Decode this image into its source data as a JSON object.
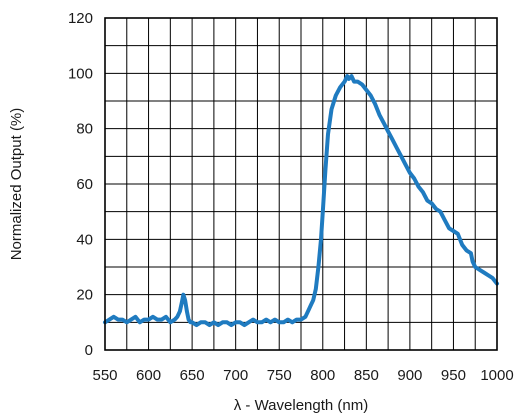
{
  "chart_data": {
    "type": "line",
    "title": "",
    "xlabel": "λ - Wavelength (nm)",
    "ylabel": "Normalized Output (%)",
    "xlim": [
      550,
      1000
    ],
    "ylim": [
      0,
      120
    ],
    "x_ticks": [
      550,
      600,
      650,
      700,
      750,
      800,
      850,
      900,
      950,
      1000
    ],
    "y_ticks": [
      0,
      20,
      40,
      60,
      80,
      100,
      120
    ],
    "x_tick_labels": [
      "550",
      "600",
      "650",
      "700",
      "750",
      "800",
      "850",
      "900",
      "950",
      "1000"
    ],
    "y_tick_labels": [
      "0",
      "20",
      "40",
      "60",
      "80",
      "100",
      "120"
    ],
    "x_minor_step": 25,
    "y_minor_step": 10,
    "grid": true,
    "series": [
      {
        "color": "#1f7bc0",
        "x": [
          550,
          555,
          560,
          565,
          570,
          575,
          580,
          585,
          590,
          595,
          600,
          605,
          610,
          615,
          620,
          625,
          630,
          633,
          636,
          638,
          640,
          642,
          644,
          646,
          648,
          650,
          655,
          660,
          665,
          670,
          675,
          680,
          685,
          690,
          695,
          700,
          705,
          710,
          715,
          720,
          725,
          730,
          735,
          740,
          745,
          750,
          755,
          760,
          765,
          770,
          775,
          780,
          783,
          786,
          789,
          792,
          795,
          798,
          800,
          803,
          806,
          810,
          815,
          820,
          825,
          828,
          830,
          833,
          836,
          840,
          845,
          850,
          855,
          860,
          865,
          870,
          875,
          880,
          885,
          890,
          895,
          900,
          905,
          910,
          915,
          920,
          925,
          930,
          935,
          940,
          945,
          950,
          955,
          960,
          965,
          970,
          972,
          975,
          980,
          985,
          990,
          995,
          1000
        ],
        "y": [
          10,
          11,
          12,
          11,
          11,
          10,
          11,
          12,
          10,
          11,
          11,
          12,
          11,
          11,
          12,
          10,
          11,
          12,
          14,
          17,
          20,
          18,
          14,
          11,
          10,
          10,
          9,
          10,
          10,
          9,
          10,
          9,
          10,
          10,
          9,
          10,
          10,
          9,
          10,
          11,
          10,
          10,
          11,
          10,
          11,
          10,
          10,
          11,
          10,
          11,
          11,
          12,
          14,
          16,
          18,
          22,
          30,
          40,
          50,
          65,
          78,
          87,
          92,
          95,
          97,
          99,
          98,
          99,
          97,
          97,
          96,
          94,
          92,
          89,
          85,
          82,
          79,
          76,
          73,
          70,
          67,
          64,
          62,
          59,
          57,
          54,
          53,
          51,
          50,
          47,
          44,
          43,
          42,
          38,
          36,
          35,
          32,
          30,
          29,
          28,
          27,
          26,
          24
        ]
      }
    ]
  }
}
